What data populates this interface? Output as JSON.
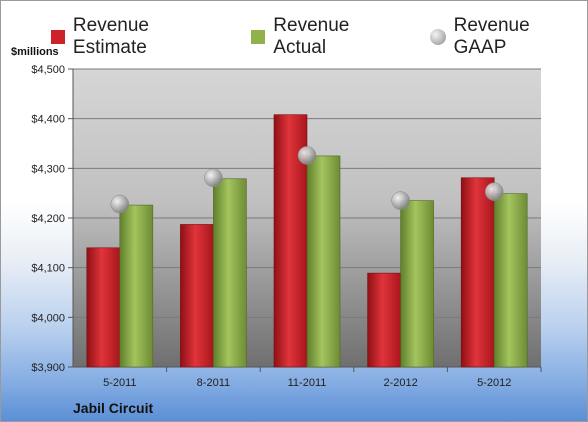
{
  "chart_data": {
    "type": "bar",
    "title": "",
    "ylabel": "$millions",
    "xlabel": "",
    "footer_label": "Jabil Circuit",
    "categories": [
      "5-2011",
      "8-2011",
      "11-2011",
      "2-2012",
      "5-2012"
    ],
    "series": [
      {
        "name": "Revenue Estimate",
        "type": "bar",
        "color": "#cc2229",
        "values": [
          4140,
          4187,
          4408,
          4089,
          4281
        ]
      },
      {
        "name": "Revenue Actual",
        "type": "bar",
        "color": "#8fb24d",
        "values": [
          4226,
          4279,
          4325,
          4235,
          4249
        ]
      },
      {
        "name": "Revenue GAAP",
        "type": "marker",
        "color": "#b5b5b5",
        "values": [
          4228,
          4281,
          4326,
          4235,
          4253
        ]
      }
    ],
    "ylim": [
      3900,
      4500
    ],
    "yticks": [
      "$3,900",
      "$4,000",
      "$4,100",
      "$4,200",
      "$4,300",
      "$4,400",
      "$4,500"
    ],
    "ytick_values": [
      3900,
      4000,
      4100,
      4200,
      4300,
      4400,
      4500
    ],
    "grid": true,
    "legend_position": "top"
  }
}
